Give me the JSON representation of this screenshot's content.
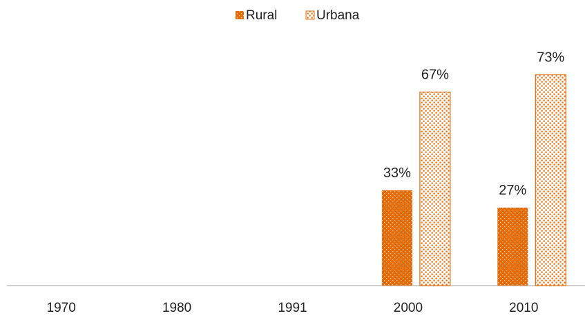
{
  "chart_data": {
    "type": "bar",
    "categories": [
      "1970",
      "1980",
      "1991",
      "2000",
      "2010"
    ],
    "series": [
      {
        "name": "Rural",
        "color": "#e46c0a",
        "values": [
          null,
          null,
          null,
          33,
          27
        ],
        "value_labels": [
          null,
          null,
          null,
          "33%",
          "27%"
        ]
      },
      {
        "name": "Urbana",
        "color": "#e46c0a",
        "values": [
          null,
          null,
          null,
          67,
          73
        ],
        "value_labels": [
          null,
          null,
          null,
          "67%",
          "73%"
        ]
      }
    ],
    "ylim": [
      0,
      80
    ],
    "legend": "top"
  }
}
